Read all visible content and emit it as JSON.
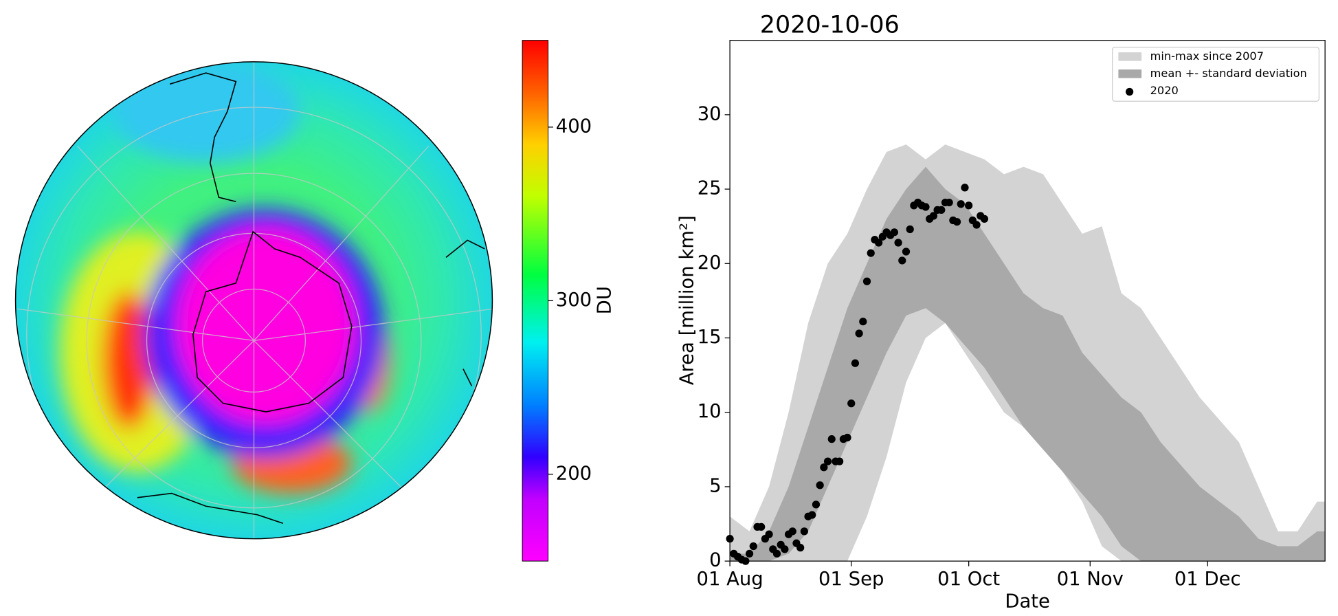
{
  "map": {
    "colorbar": {
      "label": "DU",
      "lim": [
        150,
        450
      ],
      "ticks": [
        200,
        300,
        400
      ]
    }
  },
  "chart_data": {
    "type": "area",
    "title": "2020-10-06",
    "xlabel": "Date",
    "ylabel": "Area [million km²]",
    "xlim": [
      0,
      152
    ],
    "ylim": [
      0,
      35
    ],
    "xticks": [
      {
        "value": 0,
        "label": "01 Aug"
      },
      {
        "value": 31,
        "label": "01 Sep"
      },
      {
        "value": 61,
        "label": "01 Oct"
      },
      {
        "value": 92,
        "label": "01 Nov"
      },
      {
        "value": 122,
        "label": "01 Dec"
      }
    ],
    "yticks": [
      0,
      5,
      10,
      15,
      20,
      25,
      30
    ],
    "legend": "upper right",
    "x": [
      0,
      5,
      10,
      15,
      20,
      25,
      30,
      35,
      40,
      45,
      50,
      55,
      60,
      65,
      70,
      75,
      80,
      85,
      90,
      95,
      100,
      105,
      110,
      115,
      120,
      125,
      130,
      135,
      140,
      145,
      150,
      152
    ],
    "series": [
      {
        "name": "min-max since 2007",
        "type": "band",
        "color": "#d3d3d3",
        "lower": [
          0,
          0,
          0,
          0,
          0,
          0,
          0,
          3,
          7,
          12,
          15,
          16,
          14,
          12,
          10,
          9,
          8,
          6,
          4,
          1,
          0,
          0,
          0,
          0,
          0,
          0,
          0,
          0,
          0,
          0,
          0,
          0
        ],
        "upper": [
          3,
          2,
          5,
          10,
          16,
          20,
          22,
          25,
          27.5,
          28,
          27,
          28,
          27.5,
          27,
          26,
          26.5,
          26,
          24,
          22,
          22.5,
          18,
          17,
          15,
          13,
          11,
          9.5,
          8,
          5,
          2,
          2,
          4,
          4
        ]
      },
      {
        "name": "mean +- standard deviation",
        "type": "band",
        "color": "#a9a9a9",
        "lower": [
          0,
          0,
          0,
          0.5,
          2,
          5,
          8,
          11,
          14,
          16.5,
          17,
          16,
          14.5,
          13,
          11,
          9,
          7.5,
          6,
          4.5,
          3,
          1,
          0,
          0,
          0,
          0,
          0,
          0,
          0,
          0,
          0,
          0,
          0
        ],
        "upper": [
          0.5,
          0.5,
          2,
          5,
          9,
          13,
          17,
          20,
          23,
          25,
          26.5,
          25,
          24,
          22,
          20,
          18,
          17,
          16.5,
          14,
          12.5,
          11,
          10,
          8,
          6.5,
          5,
          4,
          3,
          1.5,
          1,
          1,
          2,
          2
        ]
      },
      {
        "name": "2020",
        "type": "scatter",
        "color": "#000000",
        "x": [
          0,
          1,
          2,
          3,
          4,
          5,
          6,
          7,
          8,
          9,
          10,
          11,
          12,
          13,
          14,
          15,
          16,
          17,
          18,
          19,
          20,
          21,
          22,
          23,
          24,
          25,
          26,
          27,
          28,
          29,
          30,
          31,
          32,
          33,
          34,
          35,
          36,
          37,
          38,
          39,
          40,
          41,
          42,
          43,
          44,
          45,
          46,
          47,
          48,
          49,
          50,
          51,
          52,
          53,
          54,
          55,
          56,
          57,
          58,
          59,
          60,
          61,
          62,
          63,
          64,
          65
        ],
        "values": [
          1.5,
          0.5,
          0.3,
          0.1,
          0,
          0.5,
          1,
          2.3,
          2.3,
          1.5,
          1.8,
          0.8,
          0.5,
          1.1,
          0.8,
          1.8,
          2,
          1.2,
          0.9,
          2,
          3,
          3.1,
          3.8,
          5.1,
          6.3,
          6.7,
          8.2,
          6.7,
          6.7,
          8.2,
          8.3,
          10.6,
          13.3,
          15.3,
          16.1,
          18.8,
          20.7,
          21.6,
          21.4,
          21.8,
          22.1,
          21.9,
          22.1,
          21.4,
          20.2,
          20.8,
          22.3,
          23.9,
          24.1,
          23.9,
          23.8,
          23,
          23.2,
          23.6,
          23.6,
          24.1,
          24.1,
          22.9,
          22.8,
          24,
          25.1,
          23.9,
          22.9,
          22.6,
          23.2,
          23
        ]
      }
    ]
  }
}
